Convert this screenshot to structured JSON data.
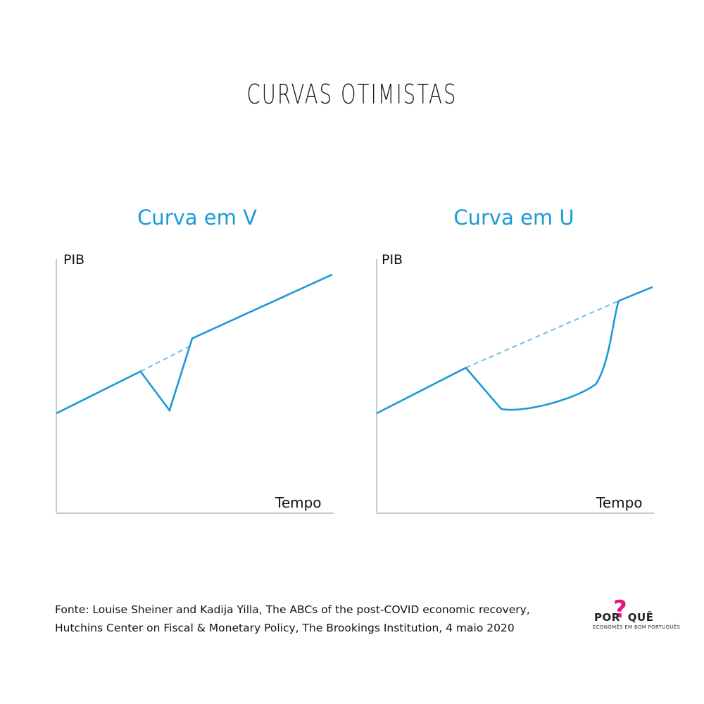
{
  "title": "CURVAS OTIMISTAS",
  "chart_data": [
    {
      "type": "line",
      "title": "Curva em V",
      "ylabel": "PIB",
      "xlabel": "Tempo",
      "trend": [
        [
          0,
          0
        ],
        [
          390,
          189
        ]
      ],
      "actual": [
        [
          0,
          0
        ],
        [
          119,
          57
        ],
        [
          160,
          4
        ],
        [
          192,
          102
        ],
        [
          390,
          189
        ]
      ],
      "projection": [
        [
          119,
          57
        ],
        [
          192,
          93
        ]
      ],
      "xlim": [
        0,
        392
      ],
      "ylim": [
        -136,
        210
      ]
    },
    {
      "type": "line",
      "title": "Curva em U",
      "ylabel": "PIB",
      "xlabel": "Tempo",
      "trend": [
        [
          0,
          0
        ],
        [
          390,
          196
        ]
      ],
      "actual": [
        [
          0,
          0
        ],
        [
          126,
          62
        ],
        [
          176,
          6
        ],
        [
          206,
          2
        ],
        [
          240,
          5
        ],
        [
          280,
          18
        ],
        [
          310,
          40
        ],
        [
          330,
          70
        ],
        [
          342,
          130
        ],
        [
          390,
          172
        ]
      ],
      "projection": [
        [
          126,
          62
        ],
        [
          342,
          153
        ]
      ],
      "xlim": [
        0,
        392
      ],
      "ylim": [
        -136,
        210
      ]
    }
  ],
  "source_text": {
    "line1": "Fonte: Louise Sheiner and Kadija Yilla, The ABCs of the post-COVID economic recovery,",
    "line2": "Hutchins Center on Fiscal & Monetary Policy, The Brookings Institution, 4 maio 2020"
  },
  "logo": {
    "word_left": "POR",
    "question_mark": "?",
    "word_right": "QUÊ",
    "tagline": "ECONOMÊS EM BOM PORTUGUÊS"
  },
  "colors": {
    "line": "#1c9ad6",
    "projection": "#7cc3e9",
    "axis": "#c8c8c8",
    "logo_accent": "#e6127e"
  }
}
